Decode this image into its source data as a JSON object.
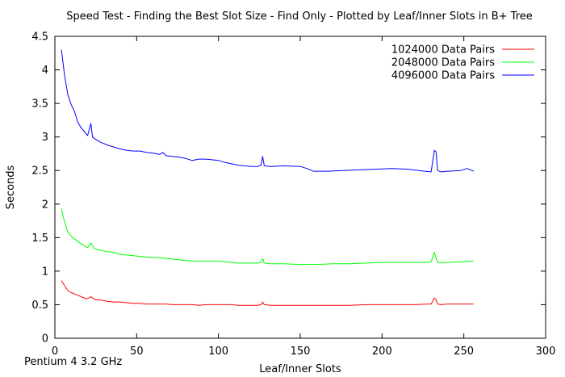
{
  "chart_data": {
    "type": "line",
    "title": "Speed Test - Finding the Best Slot Size - Find Only - Plotted by Leaf/Inner Slots in B+ Tree",
    "xlabel": "Leaf/Inner Slots",
    "ylabel": "Seconds",
    "xlim": [
      0,
      300
    ],
    "ylim": [
      0,
      4.5
    ],
    "xticks": [
      0,
      50,
      100,
      150,
      200,
      250,
      300
    ],
    "yticks": [
      0,
      0.5,
      1,
      1.5,
      2,
      2.5,
      3,
      3.5,
      4,
      4.5
    ],
    "xtick_labels": [
      "0",
      "50",
      "100",
      "150",
      "200",
      "250",
      "300"
    ],
    "ytick_labels": [
      "0",
      "0.5",
      "1",
      "1.5",
      "2",
      "2.5",
      "3",
      "3.5",
      "4",
      "4.5"
    ],
    "grid": false,
    "legend": "top-right",
    "series": [
      {
        "name": "1024000 Data Pairs",
        "color": "#ff0000",
        "x": [
          4,
          6,
          8,
          10,
          14,
          18,
          20,
          22,
          24,
          28,
          32,
          36,
          40,
          44,
          48,
          52,
          56,
          60,
          64,
          68,
          72,
          76,
          80,
          84,
          88,
          92,
          96,
          100,
          104,
          108,
          112,
          116,
          120,
          124,
          126,
          127,
          128,
          132,
          140,
          150,
          160,
          170,
          180,
          190,
          200,
          210,
          220,
          228,
          230,
          232,
          233,
          234,
          236,
          240,
          248,
          256
        ],
        "y": [
          0.86,
          0.78,
          0.71,
          0.68,
          0.64,
          0.6,
          0.59,
          0.62,
          0.58,
          0.57,
          0.55,
          0.54,
          0.54,
          0.53,
          0.52,
          0.52,
          0.51,
          0.51,
          0.51,
          0.51,
          0.5,
          0.5,
          0.5,
          0.5,
          0.49,
          0.5,
          0.5,
          0.5,
          0.5,
          0.5,
          0.49,
          0.49,
          0.49,
          0.49,
          0.5,
          0.54,
          0.5,
          0.49,
          0.49,
          0.49,
          0.49,
          0.49,
          0.49,
          0.5,
          0.5,
          0.5,
          0.5,
          0.51,
          0.51,
          0.6,
          0.57,
          0.51,
          0.5,
          0.51,
          0.51,
          0.51
        ]
      },
      {
        "name": "2048000 Data Pairs",
        "color": "#00ff00",
        "x": [
          4,
          6,
          8,
          10,
          14,
          18,
          20,
          22,
          24,
          28,
          32,
          36,
          40,
          44,
          48,
          52,
          56,
          60,
          64,
          68,
          72,
          76,
          80,
          84,
          88,
          92,
          96,
          100,
          104,
          108,
          112,
          116,
          120,
          124,
          126,
          127,
          128,
          132,
          140,
          150,
          160,
          170,
          180,
          190,
          200,
          210,
          220,
          228,
          230,
          232,
          233,
          234,
          236,
          240,
          248,
          256
        ],
        "y": [
          1.93,
          1.72,
          1.58,
          1.52,
          1.44,
          1.38,
          1.35,
          1.42,
          1.34,
          1.31,
          1.29,
          1.28,
          1.25,
          1.24,
          1.23,
          1.22,
          1.21,
          1.2,
          1.2,
          1.19,
          1.18,
          1.17,
          1.16,
          1.15,
          1.15,
          1.15,
          1.15,
          1.15,
          1.14,
          1.13,
          1.12,
          1.12,
          1.12,
          1.12,
          1.13,
          1.19,
          1.12,
          1.11,
          1.11,
          1.1,
          1.1,
          1.11,
          1.11,
          1.12,
          1.13,
          1.13,
          1.13,
          1.13,
          1.14,
          1.28,
          1.2,
          1.13,
          1.13,
          1.13,
          1.14,
          1.15
        ]
      },
      {
        "name": "4096000 Data Pairs",
        "color": "#0000ff",
        "x": [
          4,
          6,
          8,
          10,
          12,
          14,
          16,
          18,
          20,
          22,
          23,
          24,
          28,
          32,
          36,
          40,
          44,
          48,
          52,
          56,
          60,
          64,
          66,
          68,
          72,
          76,
          80,
          84,
          88,
          92,
          96,
          100,
          104,
          108,
          112,
          116,
          120,
          124,
          126,
          127,
          128,
          132,
          140,
          150,
          154,
          158,
          166,
          176,
          186,
          196,
          206,
          216,
          226,
          230,
          232,
          233,
          234,
          236,
          240,
          248,
          252,
          256
        ],
        "y": [
          4.3,
          3.9,
          3.62,
          3.48,
          3.38,
          3.22,
          3.14,
          3.08,
          3.02,
          3.2,
          3.0,
          2.98,
          2.92,
          2.88,
          2.85,
          2.82,
          2.8,
          2.79,
          2.79,
          2.77,
          2.76,
          2.74,
          2.77,
          2.72,
          2.71,
          2.7,
          2.68,
          2.65,
          2.67,
          2.67,
          2.66,
          2.65,
          2.62,
          2.6,
          2.58,
          2.57,
          2.56,
          2.56,
          2.58,
          2.71,
          2.57,
          2.56,
          2.57,
          2.56,
          2.53,
          2.49,
          2.49,
          2.5,
          2.51,
          2.52,
          2.53,
          2.52,
          2.49,
          2.48,
          2.8,
          2.78,
          2.5,
          2.48,
          2.49,
          2.5,
          2.53,
          2.49
        ]
      }
    ]
  },
  "footnote": "Pentium 4 3.2 GHz"
}
